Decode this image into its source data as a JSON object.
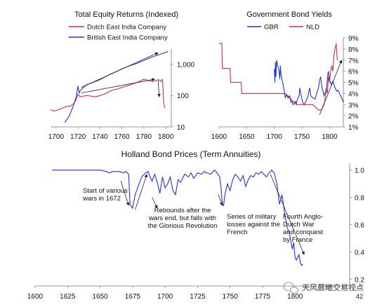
{
  "colors": {
    "dutch": "#d32f3f",
    "british": "#2233dd",
    "gbr": "#2233dd",
    "nld": "#d32f3f",
    "holland": "#2233dd",
    "arrow": "#222222",
    "axis": "#777777",
    "watermark": "#888888"
  },
  "watermark": {
    "text": "天风晨曦交易视点",
    "icon": "wechat-icon"
  },
  "chart_data": [
    {
      "type": "line",
      "title": "Total Equity Returns (Indexed)",
      "y_scale": "log",
      "ylim": [
        10,
        3000
      ],
      "xlim": [
        1695,
        1805
      ],
      "x_ticks": [
        "1700",
        "1720",
        "1740",
        "1760",
        "1780",
        "1800"
      ],
      "y_ticks": [
        {
          "value": 10,
          "label": "10"
        },
        {
          "value": 100,
          "label": "100"
        },
        {
          "value": 1000,
          "label": "1,000"
        }
      ],
      "legend_position": "top-left",
      "series": [
        {
          "name": "Dutch East India Company",
          "color_key": "dutch",
          "x": [
            1695,
            1698,
            1702,
            1706,
            1710,
            1713,
            1716,
            1718,
            1720,
            1722,
            1725,
            1728,
            1732,
            1736,
            1740,
            1744,
            1748,
            1752,
            1756,
            1760,
            1764,
            1768,
            1772,
            1776,
            1780,
            1784,
            1788,
            1791,
            1793,
            1794,
            1795,
            1796,
            1797,
            1798,
            1799
          ],
          "y": [
            35,
            32,
            35,
            40,
            45,
            45,
            55,
            70,
            110,
            90,
            95,
            100,
            95,
            90,
            100,
            110,
            130,
            150,
            160,
            180,
            200,
            220,
            250,
            280,
            330,
            300,
            280,
            290,
            320,
            310,
            280,
            300,
            320,
            60,
            40
          ]
        },
        {
          "name": "British East India Company",
          "color_key": "british",
          "x": [
            1708,
            1712,
            1715,
            1718,
            1720,
            1721,
            1722,
            1725,
            1728,
            1732,
            1736,
            1740,
            1744,
            1748,
            1752,
            1756,
            1760,
            1764,
            1768,
            1772,
            1776,
            1780,
            1784,
            1788,
            1792,
            1796,
            1799,
            1802
          ],
          "y": [
            14,
            22,
            40,
            80,
            200,
            120,
            140,
            180,
            220,
            250,
            280,
            320,
            380,
            450,
            520,
            600,
            700,
            800,
            900,
            1000,
            1150,
            1300,
            1500,
            1700,
            1900,
            2100,
            2300,
            2500
          ]
        }
      ],
      "annotations": [
        {
          "type": "arrow",
          "from": [
            1723,
            180
          ],
          "to": [
            1793,
            2300
          ]
        },
        {
          "type": "arrow",
          "from": [
            1723,
            120
          ],
          "to": [
            1790,
            330
          ]
        },
        {
          "type": "arrow",
          "from": [
            1793,
            300
          ],
          "to": [
            1794,
            90
          ]
        }
      ]
    },
    {
      "type": "line",
      "title": "Government Bond Yields",
      "xlim": [
        1600,
        1825
      ],
      "ylim": [
        1,
        9
      ],
      "x_ticks": [
        "1600",
        "1650",
        "1700",
        "1750",
        "1800"
      ],
      "y_ticks": [
        {
          "value": 1,
          "label": "1%"
        },
        {
          "value": 2,
          "label": "2%"
        },
        {
          "value": 3,
          "label": "3%"
        },
        {
          "value": 4,
          "label": "4%"
        },
        {
          "value": 5,
          "label": "5%"
        },
        {
          "value": 6,
          "label": "6%"
        },
        {
          "value": 7,
          "label": "7%"
        },
        {
          "value": 8,
          "label": "8%"
        },
        {
          "value": 9,
          "label": "9%"
        }
      ],
      "legend_position": "top-center",
      "series": [
        {
          "name": "GBR",
          "color_key": "gbr",
          "x": [
            1700,
            1701,
            1702,
            1703,
            1704,
            1706,
            1708,
            1710,
            1711,
            1712,
            1714,
            1716,
            1718,
            1720,
            1722,
            1725,
            1728,
            1730,
            1732,
            1734,
            1736,
            1738,
            1740,
            1742,
            1745,
            1746,
            1748,
            1750,
            1752,
            1754,
            1756,
            1758,
            1760,
            1762,
            1764,
            1766,
            1770,
            1774,
            1778,
            1780,
            1782,
            1784,
            1786,
            1790,
            1793,
            1795,
            1797,
            1798,
            1800,
            1803,
            1806,
            1810,
            1813,
            1815,
            1818,
            1822,
            1825
          ],
          "y": [
            6.2,
            5.0,
            6.8,
            5.5,
            7.0,
            6.5,
            6.2,
            5.3,
            6.5,
            5.8,
            5.2,
            4.8,
            4.2,
            3.6,
            3.9,
            3.6,
            3.8,
            3.2,
            3.3,
            3.0,
            3.1,
            3.3,
            3.1,
            3.5,
            3.8,
            4.5,
            4.0,
            3.5,
            3.1,
            3.0,
            3.2,
            3.4,
            3.6,
            4.0,
            4.5,
            3.8,
            3.6,
            3.5,
            4.2,
            4.5,
            5.2,
            5.5,
            4.6,
            3.8,
            4.2,
            4.6,
            5.8,
            6.0,
            5.2,
            4.8,
            5.1,
            4.5,
            4.2,
            4.3,
            4.0,
            3.6,
            3.2
          ]
        },
        {
          "name": "NLD",
          "color_key": "nld",
          "x": [
            1600,
            1605,
            1606,
            1610,
            1620,
            1621,
            1630,
            1640,
            1641,
            1650,
            1655,
            1656,
            1665,
            1666,
            1700,
            1710,
            1720,
            1730,
            1740,
            1750,
            1760,
            1770,
            1780,
            1785,
            1790,
            1792,
            1794,
            1796,
            1798,
            1800,
            1802,
            1804,
            1806,
            1808,
            1810,
            1812,
            1814
          ],
          "y": [
            8.5,
            8.5,
            6.25,
            6.25,
            6.25,
            5.0,
            5.0,
            5.0,
            4.0,
            4.0,
            4.0,
            4.0,
            4.0,
            4.0,
            4.0,
            4.0,
            4.0,
            3.5,
            3.0,
            3.0,
            3.0,
            3.0,
            2.5,
            2.5,
            3.0,
            3.5,
            4.5,
            4.0,
            5.5,
            5.0,
            6.0,
            6.5,
            6.0,
            7.5,
            8.0,
            8.5,
            7.0
          ]
        }
      ],
      "annotations": [
        {
          "type": "arrow",
          "from": [
            1782,
            2.1
          ],
          "to": [
            1822,
            7.0
          ]
        }
      ]
    },
    {
      "type": "line",
      "title": "Holland Bond Prices (Term Annuities)",
      "xlim": [
        1600,
        1842
      ],
      "ylim": [
        0.15,
        1.05
      ],
      "x_ticks": [
        "1600",
        "1625",
        "1650",
        "1675",
        "1700",
        "1725",
        "1750",
        "1775",
        "1800"
      ],
      "y_ticks": [
        {
          "value": 0.2,
          "label": "0.2"
        },
        {
          "value": 0.4,
          "label": "0.4"
        },
        {
          "value": 0.6,
          "label": "0.6"
        },
        {
          "value": 0.8,
          "label": "0.8"
        },
        {
          "value": 1.0,
          "label": "1.0"
        }
      ],
      "series": [
        {
          "name": "",
          "color_key": "holland",
          "x": [
            1613,
            1620,
            1630,
            1640,
            1650,
            1655,
            1657,
            1660,
            1665,
            1668,
            1670,
            1672,
            1673,
            1675,
            1677,
            1680,
            1682,
            1685,
            1687,
            1688,
            1690,
            1692,
            1694,
            1696,
            1698,
            1700,
            1702,
            1704,
            1706,
            1708,
            1710,
            1712,
            1715,
            1718,
            1720,
            1722,
            1725,
            1728,
            1730,
            1732,
            1735,
            1738,
            1740,
            1742,
            1743,
            1744,
            1745,
            1746,
            1748,
            1750,
            1752,
            1754,
            1756,
            1758,
            1760,
            1762,
            1764,
            1766,
            1768,
            1770,
            1772,
            1774,
            1776,
            1778,
            1780,
            1781,
            1782,
            1784,
            1785,
            1786,
            1788,
            1790,
            1792,
            1794,
            1796,
            1798,
            1799,
            1800,
            1801,
            1802,
            1803,
            1804,
            1805,
            1806
          ],
          "y": [
            1.0,
            1.0,
            1.0,
            1.0,
            1.0,
            0.99,
            0.98,
            0.99,
            0.99,
            0.98,
            0.99,
            0.97,
            0.75,
            0.72,
            0.82,
            0.9,
            0.95,
            0.98,
            0.99,
            0.96,
            0.92,
            0.97,
            0.91,
            0.83,
            0.95,
            0.87,
            0.9,
            0.95,
            0.85,
            0.82,
            0.93,
            0.91,
            0.97,
            0.95,
            0.98,
            0.94,
            0.98,
            0.97,
            0.99,
            0.98,
            0.97,
            1.0,
            0.98,
            0.95,
            0.88,
            0.75,
            0.74,
            0.82,
            0.9,
            0.85,
            0.93,
            0.97,
            0.95,
            0.92,
            0.96,
            0.88,
            0.93,
            0.96,
            0.95,
            0.98,
            0.97,
            0.99,
            0.97,
            0.95,
            0.98,
            0.99,
            1.0,
            0.98,
            0.94,
            0.9,
            0.75,
            0.82,
            0.68,
            0.58,
            0.52,
            0.42,
            0.47,
            0.36,
            0.34,
            0.36,
            0.38,
            0.32,
            0.3,
            0.31
          ]
        }
      ],
      "annotations": [
        {
          "type": "text",
          "lines": [
            "Start of various",
            "wars in 1672"
          ]
        },
        {
          "type": "text",
          "lines": [
            "Rebounds after the",
            "wars end, but falls with",
            "the Glorious Revolution"
          ]
        },
        {
          "type": "text",
          "lines": [
            "Series of military",
            "losses against the",
            "French"
          ]
        },
        {
          "type": "text",
          "lines": [
            "Fourth Anglo-",
            "Dutch War",
            "and conquest",
            "by France"
          ]
        },
        {
          "type": "arrow",
          "from": [
            1666,
            0.92
          ],
          "to": [
            1672,
            0.74
          ]
        },
        {
          "type": "arrow",
          "from": [
            1677,
            0.71
          ],
          "to": [
            1686,
            0.97
          ]
        },
        {
          "type": "arrow",
          "from": [
            1690,
            0.8
          ],
          "to": [
            1694,
            0.72
          ]
        },
        {
          "type": "arrow",
          "from": [
            1741,
            0.82
          ],
          "to": [
            1744,
            0.74
          ]
        },
        {
          "type": "arrow",
          "from": [
            1781,
            0.97
          ],
          "to": [
            1807,
            0.38
          ]
        }
      ],
      "corner_label": "42"
    }
  ]
}
